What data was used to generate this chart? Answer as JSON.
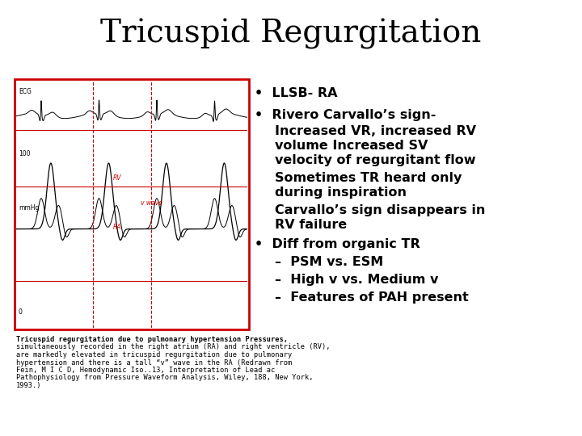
{
  "title": "Tricuspid Regurgitation",
  "title_fontsize": 28,
  "title_font": "serif",
  "bg_color": "#ffffff",
  "text_color": "#000000",
  "box_color": "#cc0000",
  "bullet_fontsize": 11.5,
  "caption_fontsize": 6.2,
  "image_caption_line1": "Tricuspid regurgitation due to pulmonary hypertension Pressures,",
  "image_caption_line2": "simultaneously recorded in the right atrium (RA) and right ventricle (RV),",
  "image_caption_line3": "are markedly elevated in tricuspid regurgitation due to pulmonary",
  "image_caption_line4": "hypertension and there is a tall “v” wave in the RA (Redrawn from",
  "image_caption_line5": "Fein, M I C D, Hemodynamic Iso..13, Interpretation of Lead ac",
  "image_caption_line6": "Pathophysiology from Pressure Waveform Analysis, Wiley, 188, New York,",
  "image_caption_line7": "1993.)"
}
